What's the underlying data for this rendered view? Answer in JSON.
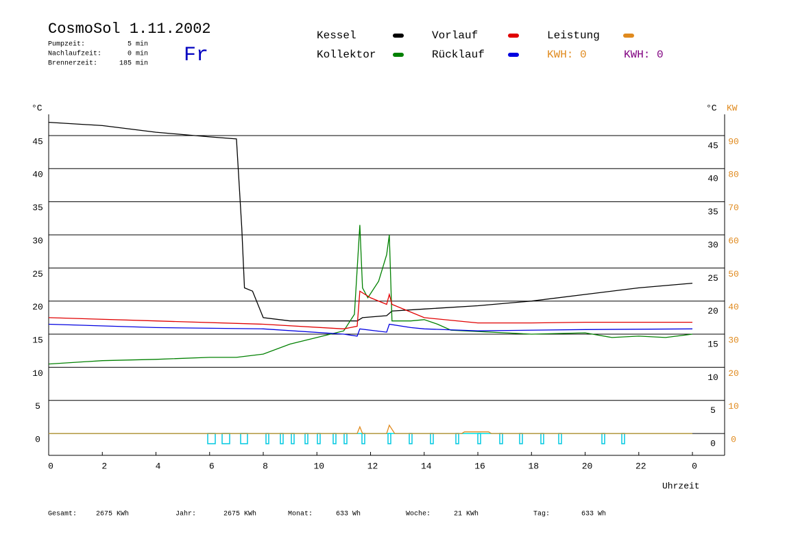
{
  "header": {
    "title": "CosmoSol 1.11.2002",
    "day": "Fr",
    "info": [
      {
        "label": "Pumpzeit:",
        "value": "5 min"
      },
      {
        "label": "Nachlaufzeit:",
        "value": "0 min"
      },
      {
        "label": "Brennerzeit:",
        "value": "185 min"
      }
    ]
  },
  "footer": [
    {
      "label": "Gesamt:",
      "value": "2675 KWh"
    },
    {
      "label": "Jahr:",
      "value": "2675 KWh"
    },
    {
      "label": "Monat:",
      "value": "633 Wh"
    },
    {
      "label": "Woche:",
      "value": "21 KWh"
    },
    {
      "label": "Tag:",
      "value": "633 Wh"
    }
  ],
  "chart_data": {
    "type": "line",
    "ylabel": "°C",
    "y2label_unit": "°C",
    "y2label": "KW",
    "xlabel": "Uhrzeit",
    "legend_extras": [
      {
        "text": "KWH: 0",
        "color": "#e08a1e"
      },
      {
        "text": "KWH: 0",
        "color": "#800080"
      }
    ],
    "xlim": [
      0,
      25.2
    ],
    "xticks": [
      0,
      2,
      4,
      6,
      8,
      10,
      12,
      14,
      16,
      18,
      20,
      22,
      {
        "value": 24,
        "label": "0"
      }
    ],
    "ylim": [
      -3.3,
      48.2
    ],
    "yticks": [
      0,
      5,
      10,
      15,
      20,
      25,
      30,
      35,
      40,
      45
    ],
    "y2lim": [
      -6.6,
      96.4
    ],
    "y2ticks": [
      0,
      10,
      20,
      30,
      40,
      50,
      60,
      70,
      80,
      90
    ],
    "series": [
      {
        "name": "Kessel",
        "color": "#000000",
        "x": [
          0,
          2,
          4,
          6,
          7,
          7.2,
          7.3,
          7.6,
          8,
          9,
          11.5,
          11.7,
          12.6,
          12.8,
          14,
          16,
          18,
          20,
          22,
          24
        ],
        "values": [
          47,
          46.5,
          45.5,
          44.8,
          44.5,
          31,
          22,
          21.5,
          17.5,
          17,
          17,
          17.5,
          17.8,
          18.5,
          18.8,
          19.3,
          20,
          21,
          22,
          22.7
        ]
      },
      {
        "name": "Kollektor",
        "color": "#008000",
        "x": [
          0,
          2,
          4,
          6,
          7,
          8,
          9,
          10,
          11,
          11.4,
          11.6,
          11.7,
          11.9,
          12.3,
          12.6,
          12.7,
          12.8,
          13.5,
          14,
          14.5,
          15,
          18,
          20,
          21,
          22,
          23,
          24
        ],
        "values": [
          10.5,
          11,
          11.2,
          11.5,
          11.5,
          12,
          13.5,
          14.5,
          15.5,
          18,
          31.5,
          22,
          20.5,
          23,
          27,
          30,
          17,
          17,
          17.2,
          16.5,
          15.6,
          15,
          15.2,
          14.5,
          14.7,
          14.5,
          15
        ]
      },
      {
        "name": "Vorlauf",
        "color": "#e00000",
        "x": [
          0,
          4,
          8,
          11,
          11.5,
          11.6,
          12,
          12.6,
          12.7,
          12.8,
          14,
          16,
          18,
          20,
          24
        ],
        "values": [
          17.5,
          17,
          16.5,
          15.8,
          16.2,
          21.5,
          20.5,
          19.5,
          21,
          19.5,
          17.5,
          16.7,
          16.7,
          16.8,
          16.8
        ]
      },
      {
        "name": "Rücklauf",
        "color": "#0000e0",
        "x": [
          0,
          4,
          8,
          11,
          11.5,
          11.6,
          12.6,
          12.7,
          13.5,
          14,
          16,
          20,
          24
        ],
        "values": [
          16.5,
          16,
          15.8,
          15,
          14.7,
          15.8,
          15.3,
          16.5,
          16,
          15.8,
          15.5,
          15.7,
          15.8
        ]
      },
      {
        "name": "Leistung",
        "color": "#e08a1e",
        "axis": "y2",
        "x": [
          0,
          11.5,
          11.6,
          11.7,
          12.6,
          12.7,
          12.9,
          15.4,
          15.5,
          16.4,
          16.5,
          24
        ],
        "values": [
          0,
          0,
          2,
          0,
          0,
          2.5,
          0,
          0,
          0.5,
          0.5,
          0,
          0
        ]
      }
    ]
  }
}
